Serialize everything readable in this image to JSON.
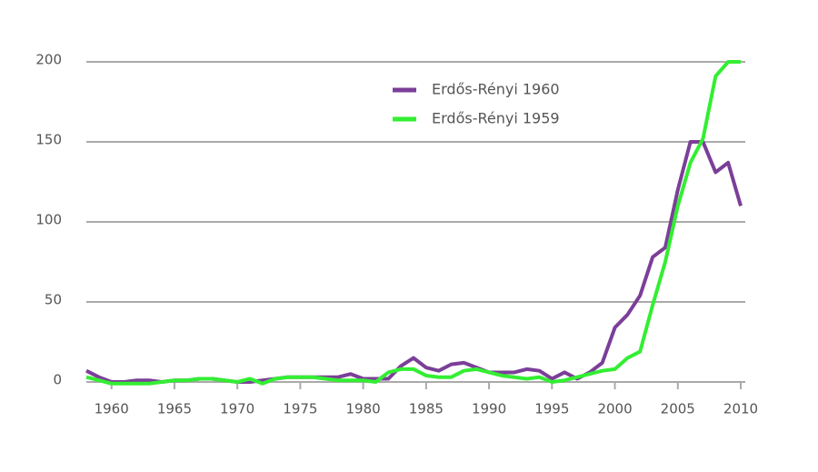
{
  "chart_data": {
    "type": "line",
    "x": [
      1958,
      1959,
      1960,
      1961,
      1962,
      1963,
      1964,
      1965,
      1966,
      1967,
      1968,
      1969,
      1970,
      1971,
      1972,
      1973,
      1974,
      1975,
      1976,
      1977,
      1978,
      1979,
      1980,
      1981,
      1982,
      1983,
      1984,
      1985,
      1986,
      1987,
      1988,
      1989,
      1990,
      1991,
      1992,
      1993,
      1994,
      1995,
      1996,
      1997,
      1998,
      1999,
      2000,
      2001,
      2002,
      2003,
      2004,
      2005,
      2006,
      2007,
      2008,
      2009,
      2010
    ],
    "series": [
      {
        "name": "Erdős-Rényi 1960",
        "color": "#7b3f98",
        "values": [
          7,
          3,
          0,
          0,
          1,
          1,
          0,
          1,
          1,
          2,
          2,
          1,
          0,
          0,
          1,
          2,
          3,
          3,
          3,
          3,
          3,
          5,
          2,
          2,
          2,
          10,
          15,
          9,
          7,
          11,
          12,
          9,
          6,
          6,
          6,
          8,
          7,
          2,
          6,
          2,
          6,
          12,
          34,
          42,
          54,
          78,
          84,
          120,
          150,
          150,
          131,
          137,
          110
        ]
      },
      {
        "name": "Erdős-Rényi 1959",
        "color": "#33ee33",
        "values": [
          3,
          1,
          -1,
          -1,
          -1,
          -1,
          0,
          1,
          1,
          2,
          2,
          1,
          0,
          2,
          -1,
          2,
          3,
          3,
          3,
          2,
          1,
          1,
          1,
          0,
          6,
          8,
          8,
          4,
          3,
          3,
          7,
          8,
          6,
          4,
          3,
          2,
          3,
          0,
          1,
          3,
          5,
          7,
          8,
          15,
          19,
          48,
          75,
          110,
          137,
          152,
          191,
          200,
          200
        ]
      }
    ],
    "xlim": [
      1958,
      2010
    ],
    "xticks": [
      1960,
      1965,
      1970,
      1975,
      1980,
      1985,
      1990,
      1995,
      2000,
      2005,
      2010
    ],
    "ylim": [
      0,
      200
    ],
    "yticks": [
      0,
      50,
      100,
      150,
      200
    ],
    "grid": true,
    "legend": "top"
  }
}
